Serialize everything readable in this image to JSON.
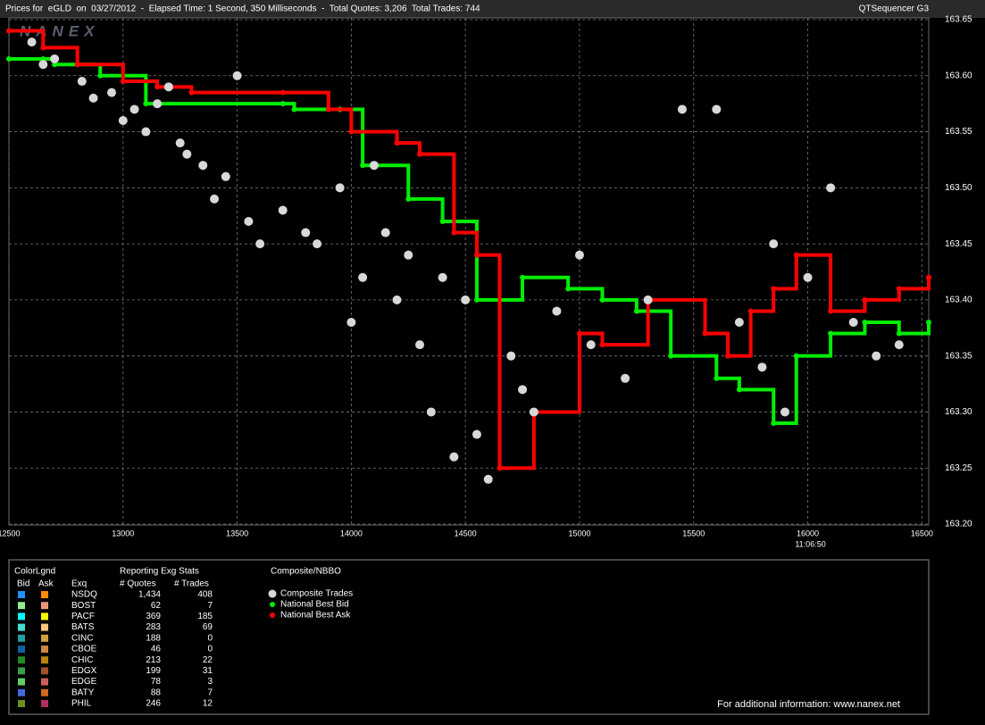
{
  "header": {
    "title": "Prices for  eGLD  on  03/27/2012  -  Elapsed Time: 1 Second, 350 Milliseconds  -  Total Quotes: 3,206  Total Trades: 744",
    "app": "QTSequencer G3"
  },
  "watermark": "NANEX",
  "chart_data": {
    "type": "scatter",
    "xlim": [
      12500,
      16530
    ],
    "xticks": [
      12500,
      13000,
      13500,
      14000,
      14500,
      15000,
      15500,
      16000,
      16500
    ],
    "ylim": [
      163.2,
      163.65
    ],
    "yticks": [
      {
        "value": 163.2,
        "label": "163.20"
      },
      163.25,
      {
        "value": 163.3,
        "label": "163.30"
      },
      163.35,
      {
        "value": 163.4,
        "label": "163.40"
      },
      163.45,
      {
        "value": 163.5,
        "label": "163.50"
      },
      163.55,
      {
        "value": 163.6,
        "label": "163.60"
      },
      163.65
    ],
    "grid": true,
    "time_label": "11:06:50",
    "series": [
      {
        "name": "Composite Trades",
        "color": "#d8d8d8",
        "style": "markers",
        "x": [
          12600,
          12650,
          12700,
          12820,
          12870,
          12950,
          13000,
          13050,
          13100,
          13150,
          13200,
          13250,
          13280,
          13350,
          13400,
          13450,
          13500,
          13550,
          13600,
          13700,
          13800,
          13850,
          13950,
          14000,
          14050,
          14100,
          14150,
          14200,
          14250,
          14300,
          14350,
          14400,
          14450,
          14500,
          14550,
          14600,
          14700,
          14750,
          14800,
          14900,
          15000,
          15050,
          15200,
          15300,
          15450,
          15600,
          15700,
          15800,
          15850,
          15900,
          16000,
          16100,
          16200,
          16300,
          16400
        ],
        "values": [
          163.63,
          163.61,
          163.615,
          163.595,
          163.58,
          163.585,
          163.56,
          163.57,
          163.55,
          163.575,
          163.59,
          163.54,
          163.53,
          163.52,
          163.49,
          163.51,
          163.6,
          163.47,
          163.45,
          163.48,
          163.46,
          163.45,
          163.5,
          163.38,
          163.42,
          163.52,
          163.46,
          163.4,
          163.44,
          163.36,
          163.3,
          163.42,
          163.26,
          163.4,
          163.28,
          163.24,
          163.35,
          163.32,
          163.3,
          163.39,
          163.44,
          163.36,
          163.33,
          163.4,
          163.57,
          163.57,
          163.38,
          163.34,
          163.45,
          163.3,
          163.42,
          163.5,
          163.38,
          163.35,
          163.36
        ]
      },
      {
        "name": "National Best Bid",
        "color": "#00ee00",
        "style": "step",
        "x": [
          12500,
          12650,
          12700,
          12900,
          13100,
          13700,
          13750,
          13950,
          14050,
          14250,
          14400,
          14550,
          14750,
          14950,
          15100,
          15250,
          15400,
          15600,
          15700,
          15850,
          15950,
          16100,
          16250,
          16400,
          16530
        ],
        "values": [
          163.615,
          163.615,
          163.61,
          163.6,
          163.575,
          163.575,
          163.57,
          163.57,
          163.52,
          163.49,
          163.47,
          163.4,
          163.42,
          163.41,
          163.4,
          163.39,
          163.35,
          163.33,
          163.32,
          163.29,
          163.35,
          163.37,
          163.38,
          163.37,
          163.38
        ]
      },
      {
        "name": "National Best Ask",
        "color": "#ff0000",
        "style": "step",
        "x": [
          12500,
          12650,
          12800,
          13000,
          13150,
          13300,
          13700,
          13900,
          14000,
          14200,
          14300,
          14450,
          14550,
          14650,
          14800,
          15000,
          15100,
          15300,
          15550,
          15650,
          15750,
          15850,
          15950,
          16100,
          16250,
          16400,
          16530
        ],
        "values": [
          163.64,
          163.625,
          163.61,
          163.595,
          163.59,
          163.585,
          163.585,
          163.57,
          163.55,
          163.54,
          163.53,
          163.46,
          163.44,
          163.25,
          163.3,
          163.37,
          163.36,
          163.4,
          163.37,
          163.35,
          163.39,
          163.41,
          163.44,
          163.39,
          163.4,
          163.41,
          163.42
        ]
      }
    ]
  },
  "legend_table": {
    "title": "ColorLgnd",
    "headers": [
      "Bid",
      "Ask",
      "Exq"
    ],
    "stats_title": "Reporting Exg Stats",
    "stats_headers": [
      "# Quotes",
      "# Trades"
    ],
    "nbbo_title": "Composite/NBBO",
    "rows": [
      {
        "exchange": "NSDQ",
        "bid_color": "#1e90ff",
        "ask_color": "#ff8c00",
        "quotes": "1,434",
        "trades": "408"
      },
      {
        "exchange": "BOST",
        "bid_color": "#90ee90",
        "ask_color": "#e9967a",
        "quotes": "62",
        "trades": "7"
      },
      {
        "exchange": "PACF",
        "bid_color": "#00ffff",
        "ask_color": "#ffff00",
        "quotes": "369",
        "trades": "185"
      },
      {
        "exchange": "BATS",
        "bid_color": "#40e0d0",
        "ask_color": "#ffc87a",
        "quotes": "283",
        "trades": "69"
      },
      {
        "exchange": "CINC",
        "bid_color": "#20a0a0",
        "ask_color": "#d2a040",
        "quotes": "188",
        "trades": "0"
      },
      {
        "exchange": "CBOE",
        "bid_color": "#1060a0",
        "ask_color": "#cd853f",
        "quotes": "46",
        "trades": "0"
      },
      {
        "exchange": "CHIC",
        "bid_color": "#228b22",
        "ask_color": "#b8860b",
        "quotes": "213",
        "trades": "22"
      },
      {
        "exchange": "EDGX",
        "bid_color": "#3c9a50",
        "ask_color": "#a0522d",
        "quotes": "199",
        "trades": "31"
      },
      {
        "exchange": "EDGE",
        "bid_color": "#66cc66",
        "ask_color": "#cd5c5c",
        "quotes": "78",
        "trades": "3"
      },
      {
        "exchange": "BATY",
        "bid_color": "#4169e1",
        "ask_color": "#d2691e",
        "quotes": "88",
        "trades": "7"
      },
      {
        "exchange": "PHIL",
        "bid_color": "#6b8e23",
        "ask_color": "#b03060",
        "quotes": "246",
        "trades": "12"
      }
    ]
  },
  "footer": "For additional information: www.nanex.net"
}
